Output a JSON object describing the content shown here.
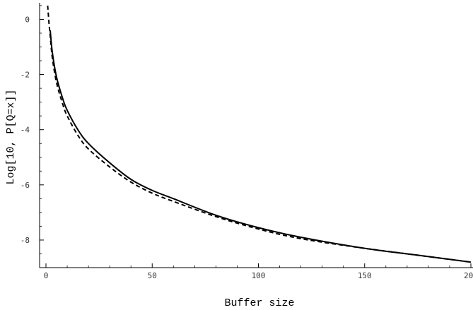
{
  "chart_data": {
    "type": "line",
    "title": "",
    "xlabel": "Buffer size",
    "ylabel": "Log[10, P[Q=x]]",
    "xlim": [
      -3,
      201
    ],
    "ylim": [
      -9.0,
      0.6
    ],
    "x_ticks": [
      0,
      50,
      100,
      150,
      200
    ],
    "x_tick_labels": [
      "0",
      "50",
      "100",
      "150",
      "200"
    ],
    "y_ticks": [
      0,
      -2,
      -4,
      -6,
      -8
    ],
    "y_tick_labels": [
      "0",
      "-2",
      "-4",
      "-6",
      "-8"
    ],
    "grid": false,
    "legend": "none",
    "series": [
      {
        "style": "solid",
        "color": "#000000",
        "x": [
          2,
          3,
          5,
          8,
          10,
          15,
          20,
          30,
          40,
          50,
          60,
          80,
          100,
          120,
          150,
          175,
          200
        ],
        "y": [
          -0.4,
          -1.2,
          -2.1,
          -2.9,
          -3.3,
          -4.0,
          -4.5,
          -5.2,
          -5.8,
          -6.2,
          -6.5,
          -7.1,
          -7.55,
          -7.9,
          -8.3,
          -8.55,
          -8.8
        ]
      },
      {
        "style": "dashed",
        "color": "#000000",
        "x": [
          0.8,
          1,
          1.5,
          2,
          3,
          5,
          8,
          10,
          15,
          20,
          30,
          40,
          50,
          60,
          80,
          100,
          120,
          150,
          175,
          200
        ],
        "y": [
          0.5,
          0.3,
          -0.2,
          -0.6,
          -1.4,
          -2.3,
          -3.1,
          -3.5,
          -4.2,
          -4.7,
          -5.35,
          -5.9,
          -6.3,
          -6.6,
          -7.15,
          -7.6,
          -7.95,
          -8.3,
          -8.55,
          -8.8
        ]
      }
    ]
  }
}
